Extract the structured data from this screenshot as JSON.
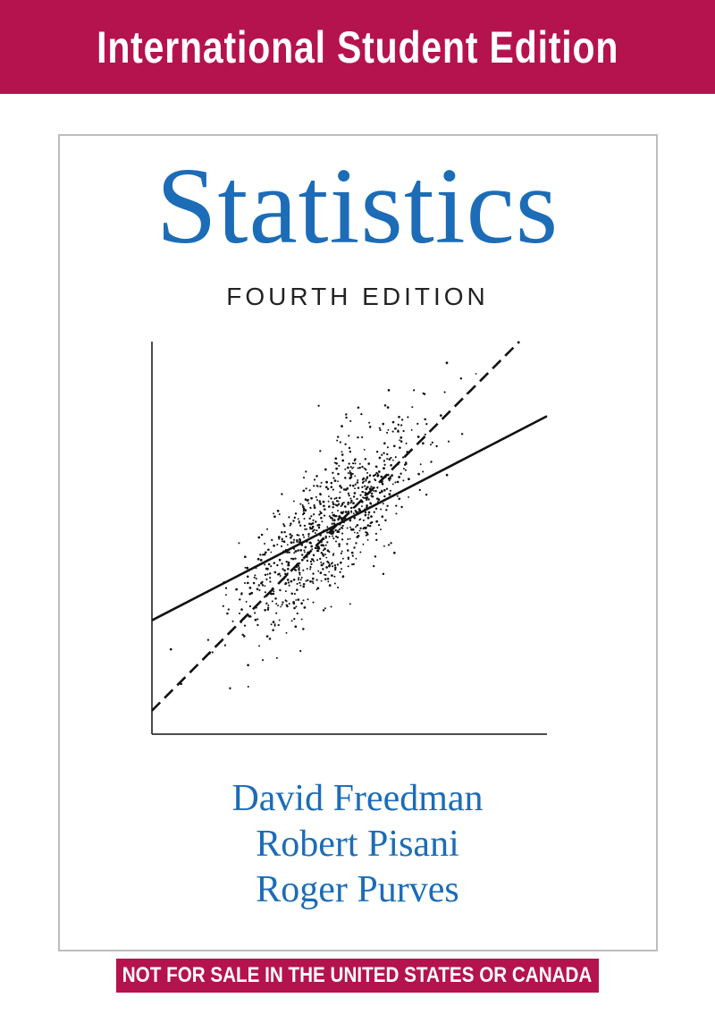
{
  "banner": {
    "text": "International Student Edition",
    "color": "#b5134d"
  },
  "title": "Statistics",
  "edition": "FOURTH EDITION",
  "authors": [
    "David Freedman",
    "Robert Pisani",
    "Roger Purves"
  ],
  "disclaimer": "NOT FOR SALE IN THE UNITED STATES OR CANADA",
  "colors": {
    "title": "#1c6cb7",
    "banner": "#b5134d",
    "frame": "#bdbdbd"
  },
  "cover_illustration": {
    "kind": "scatter diagram with two regression lines",
    "lines": [
      {
        "style": "solid",
        "start": [
          0,
          0.29
        ],
        "end": [
          1,
          0.81
        ]
      },
      {
        "style": "dashed",
        "start": [
          0,
          0.06
        ],
        "end": [
          0.93,
          1.0
        ]
      }
    ],
    "point_cloud": {
      "center": [
        0.45,
        0.53
      ],
      "approx_count": 900
    }
  }
}
